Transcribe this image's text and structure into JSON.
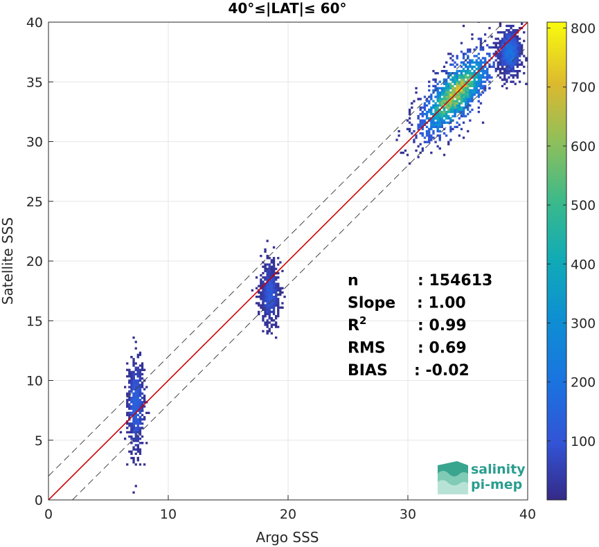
{
  "chart_data": {
    "type": "heatmap",
    "title": "40°≤|LAT|≤ 60°",
    "xlabel": "Argo SSS",
    "ylabel": "Satellite SSS",
    "xlim": [
      0,
      40
    ],
    "ylim": [
      0,
      40
    ],
    "xticks": [
      "0",
      "10",
      "20",
      "30",
      "40"
    ],
    "yticks": [
      "0",
      "5",
      "10",
      "15",
      "20",
      "25",
      "30",
      "35",
      "40"
    ],
    "grid": true,
    "reference_lines": {
      "one_to_one": {
        "color": "#cc0000",
        "intercept": 0,
        "slope": 1
      },
      "envelope": {
        "color": "#444444",
        "style": "dashed",
        "offset": 2
      }
    },
    "colorbar": {
      "min": 0,
      "max": 810,
      "ticks": [
        "100",
        "200",
        "300",
        "400",
        "500",
        "600",
        "700",
        "800"
      ],
      "colormap": "parula"
    },
    "clusters": [
      {
        "x_center": 7.3,
        "y_center": 8.0,
        "x_spread": 0.35,
        "y_spread": 2.4,
        "peak_density": 180
      },
      {
        "x_center": 18.5,
        "y_center": 17.3,
        "x_spread": 0.4,
        "y_spread": 1.6,
        "peak_density": 150
      },
      {
        "x_center": 34.0,
        "y_center": 34.0,
        "x_spread": 1.6,
        "y_spread": 1.6,
        "peak_density": 780
      },
      {
        "x_center": 38.5,
        "y_center": 37.5,
        "x_spread": 0.5,
        "y_spread": 1.2,
        "peak_density": 250
      }
    ],
    "stats": [
      {
        "label": "n",
        "value": ": 154613"
      },
      {
        "label": "Slope",
        "value": ": 1.00"
      },
      {
        "label": "R",
        "sup": "2",
        "value": ": 0.99"
      },
      {
        "label": "RMS",
        "value": ": 0.69"
      },
      {
        "label": "BIAS",
        "value": ": -0.02"
      }
    ]
  },
  "logo": {
    "line1": "salinity",
    "line2": "pi-mep",
    "color": "#2a9d8f"
  }
}
